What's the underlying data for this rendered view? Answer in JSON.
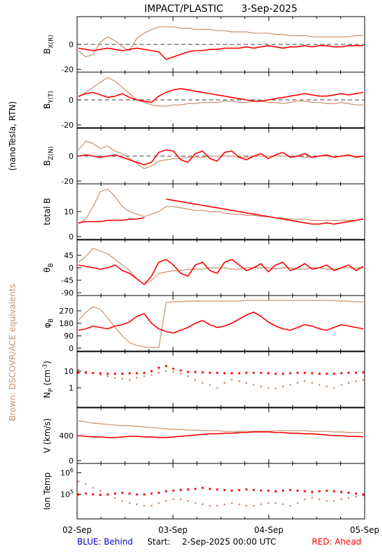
{
  "header": {
    "instrument": "IMPACT/PLASTIC",
    "date": "3-Sep-2025"
  },
  "left_labels": {
    "units": "(nanoTesla, RTN)",
    "brown_note": "Brown: DSCOVR/ACE equivalents"
  },
  "footer": {
    "blue_legend": "BLUE: Behind",
    "start_label": "Start:",
    "start_value": "2-Sep-2025 00:00 UTC",
    "red_legend": "RED: Ahead"
  },
  "x_axis": {
    "ticks": [
      "02-Sep",
      "03-Sep",
      "04-Sep",
      "05-Sep"
    ]
  },
  "colors": {
    "ahead": "#ff0000",
    "dscovr": "#c8906e",
    "behind": "#0000cc",
    "axis": "#000000"
  },
  "chart_data": [
    {
      "type": "line",
      "ylabel": "B_X(R)",
      "ylim": [
        -20,
        20
      ],
      "ticks": [
        "0",
        "-20"
      ],
      "zero_line": true,
      "series": [
        {
          "name": "RED: Ahead",
          "values": [
            -3,
            -4,
            -5,
            -4,
            -3,
            -4,
            -5,
            -4,
            -3,
            -4,
            -5,
            -6,
            -12,
            -10,
            -8,
            -6,
            -5,
            -5,
            -4,
            -4,
            -3,
            -3,
            -3,
            -2,
            -3,
            -2,
            -1,
            -2,
            -3,
            -2,
            -2,
            -1,
            -2,
            -1,
            -1,
            -2,
            -2,
            -1,
            -1,
            -1
          ]
        },
        {
          "name": "Brown: DSCOVR/ACE equivalents",
          "values": [
            -5,
            -10,
            -8,
            2,
            6,
            3,
            -2,
            -5,
            5,
            9,
            12,
            14,
            14,
            14,
            13,
            13,
            12,
            12,
            12,
            11,
            11,
            10,
            10,
            10,
            9,
            9,
            9,
            8,
            8,
            7,
            7,
            7,
            6,
            6,
            6,
            6,
            6,
            6,
            7,
            7
          ]
        }
      ]
    },
    {
      "type": "line",
      "ylabel": "B_Y(T)",
      "ylim": [
        -20,
        20
      ],
      "ticks": [
        "0",
        "-20"
      ],
      "zero_line": true,
      "series": [
        {
          "name": "RED: Ahead",
          "values": [
            3,
            5,
            6,
            4,
            2,
            3,
            5,
            2,
            0,
            -1,
            -2,
            3,
            6,
            8,
            9,
            8,
            7,
            6,
            5,
            4,
            3,
            2,
            1,
            0,
            -1,
            -1,
            0,
            1,
            2,
            3,
            4,
            5,
            4,
            3,
            3,
            4,
            5,
            4,
            5,
            6
          ]
        },
        {
          "name": "Brown: DSCOVR/ACE equivalents",
          "values": [
            2,
            6,
            10,
            14,
            18,
            15,
            10,
            5,
            0,
            -2,
            -4,
            -5,
            -5,
            -4,
            -4,
            -3,
            -3,
            -2,
            -2,
            -2,
            -1,
            -1,
            -2,
            -2,
            -1,
            -1,
            -2,
            -2,
            -3,
            -2,
            -1,
            -1,
            -2,
            -2,
            -3,
            -3,
            -2,
            -3,
            -4,
            -4
          ]
        }
      ]
    },
    {
      "type": "line",
      "ylabel": "B_Z(N)",
      "ylim": [
        -20,
        20
      ],
      "ticks": [
        "0",
        "-20"
      ],
      "zero_line": true,
      "series": [
        {
          "name": "RED: Ahead",
          "values": [
            0,
            1,
            0,
            -1,
            0,
            1,
            -1,
            -3,
            -5,
            -7,
            -5,
            3,
            5,
            4,
            -3,
            -5,
            2,
            4,
            -2,
            -4,
            3,
            4,
            -1,
            -3,
            0,
            2,
            -2,
            1,
            3,
            -1,
            0,
            2,
            -1,
            0,
            1,
            -1,
            0,
            1,
            -1,
            0
          ]
        },
        {
          "name": "Brown: DSCOVR/ACE equivalents",
          "values": [
            5,
            12,
            10,
            6,
            8,
            4,
            2,
            -2,
            -6,
            -10,
            -8,
            -4,
            -3,
            -2,
            -2,
            -1,
            -1,
            -1,
            0,
            0,
            0,
            0,
            -1,
            -1,
            0,
            0,
            0,
            0,
            0,
            0,
            0,
            -1,
            -1,
            0,
            0,
            -1,
            0,
            0,
            0,
            0
          ]
        }
      ]
    },
    {
      "type": "line",
      "ylabel": "total B",
      "ylim": [
        0,
        20
      ],
      "ticks": [
        "10",
        "0"
      ],
      "zero_line": false,
      "series": [
        {
          "name": "RED: Ahead",
          "values": [
            5.5,
            6,
            6,
            6,
            6.5,
            6.5,
            6.5,
            7,
            7,
            7.5,
            null,
            null,
            15,
            14.5,
            14,
            13.5,
            13,
            12.5,
            12,
            11.5,
            11,
            10.5,
            10,
            9.5,
            9,
            8.5,
            8,
            7.5,
            7,
            6.5,
            6,
            5.5,
            5,
            5,
            5.5,
            5,
            5.5,
            6,
            6.5,
            7
          ]
        },
        {
          "name": "Brown: DSCOVR/ACE equivalents",
          "values": [
            5,
            7,
            12,
            18,
            19,
            16,
            12,
            10,
            9,
            8,
            9,
            10,
            12,
            12,
            11.5,
            11,
            10.5,
            10.5,
            10,
            10,
            9.5,
            9,
            9,
            8.5,
            8.5,
            8,
            8,
            7.5,
            7.5,
            7,
            7,
            7,
            6.5,
            6.5,
            6.5,
            6.5,
            6.5,
            6.5,
            6.5,
            7
          ]
        }
      ]
    },
    {
      "type": "line",
      "ylabel": "θ_B",
      "ylim": [
        -90,
        90
      ],
      "ticks": [
        "45",
        "0",
        "-45",
        "-90"
      ],
      "zero_line": false,
      "series": [
        {
          "name": "RED: Ahead",
          "values": [
            10,
            5,
            0,
            -5,
            0,
            10,
            -10,
            -20,
            -40,
            -60,
            -30,
            20,
            30,
            10,
            -20,
            -30,
            10,
            20,
            -10,
            -20,
            20,
            30,
            10,
            -10,
            0,
            15,
            -15,
            10,
            20,
            -10,
            0,
            15,
            -5,
            0,
            10,
            -10,
            0,
            10,
            -10,
            5
          ]
        },
        {
          "name": "Brown: DSCOVR/ACE equivalents",
          "values": [
            20,
            40,
            70,
            60,
            50,
            30,
            10,
            -10,
            -40,
            -60,
            -45,
            -20,
            -15,
            -10,
            -10,
            -5,
            -5,
            -5,
            0,
            0,
            0,
            -5,
            -5,
            0,
            0,
            0,
            0,
            -5,
            0,
            0,
            -5,
            -5,
            0,
            0,
            -5,
            -5,
            0,
            0,
            0,
            0
          ]
        }
      ]
    },
    {
      "type": "line",
      "ylabel": "φ_B",
      "ylim": [
        0,
        360
      ],
      "ticks": [
        "270",
        "180",
        "90",
        "0"
      ],
      "zero_line": false,
      "series": [
        {
          "name": "RED: Ahead",
          "values": [
            130,
            140,
            160,
            150,
            140,
            160,
            170,
            190,
            230,
            250,
            180,
            140,
            120,
            110,
            130,
            150,
            180,
            200,
            170,
            150,
            160,
            180,
            210,
            240,
            260,
            230,
            190,
            160,
            140,
            130,
            150,
            170,
            160,
            140,
            130,
            150,
            170,
            160,
            150,
            140
          ]
        },
        {
          "name": "Brown: DSCOVR/ACE equivalents",
          "values": [
            200,
            260,
            300,
            280,
            220,
            150,
            90,
            40,
            20,
            10,
            5,
            5,
            330,
            335,
            335,
            340,
            340,
            340,
            340,
            340,
            340,
            340,
            340,
            345,
            345,
            345,
            345,
            345,
            345,
            345,
            345,
            345,
            345,
            345,
            345,
            345,
            340,
            340,
            335,
            335
          ]
        }
      ]
    },
    {
      "type": "scatter",
      "ylabel": "N_P (cm^-3)",
      "yscale": "log",
      "ylim": [
        0.1,
        100
      ],
      "ticks": [
        "10",
        "1"
      ],
      "zero_line": false,
      "series": [
        {
          "name": "RED: Ahead",
          "values": [
            8,
            8,
            7.5,
            7.5,
            7,
            7,
            7,
            7.5,
            7.5,
            8,
            10,
            16,
            20,
            14,
            11,
            9,
            9,
            8.5,
            8,
            8,
            7.5,
            7.5,
            7.5,
            8,
            8,
            8,
            7.5,
            7,
            7,
            7.5,
            8,
            8,
            7.5,
            7,
            7,
            7,
            7.5,
            8,
            8,
            8.5
          ]
        },
        {
          "name": "Brown: DSCOVR/ACE equivalents",
          "values": [
            12,
            10,
            8,
            6,
            5,
            4,
            3.5,
            3,
            4,
            5,
            6,
            8,
            10,
            9,
            7,
            5,
            3,
            2,
            1.5,
            1,
            2,
            3,
            2.5,
            2,
            1.5,
            1.2,
            1,
            0.9,
            1.2,
            1.5,
            2,
            2.5,
            2,
            1.5,
            1.2,
            1,
            1.5,
            2,
            2.5,
            3
          ]
        }
      ]
    },
    {
      "type": "line",
      "ylabel": "V (km/s)",
      "ylim": [
        0,
        800
      ],
      "ticks": [
        "400",
        "0"
      ],
      "zero_line": false,
      "series": [
        {
          "name": "RED: Ahead",
          "values": [
            400,
            390,
            380,
            380,
            370,
            370,
            380,
            390,
            390,
            380,
            380,
            370,
            370,
            380,
            390,
            400,
            410,
            420,
            430,
            430,
            440,
            440,
            450,
            450,
            460,
            460,
            460,
            450,
            450,
            440,
            440,
            430,
            430,
            420,
            410,
            400,
            400,
            390,
            390,
            380
          ]
        },
        {
          "name": "Brown: DSCOVR/ACE equivalents",
          "values": [
            640,
            620,
            600,
            590,
            580,
            570,
            560,
            560,
            550,
            540,
            530,
            520,
            510,
            500,
            500,
            490,
            490,
            480,
            480,
            480,
            470,
            470,
            470,
            470,
            470,
            470,
            470,
            480,
            480,
            480,
            480,
            480,
            470,
            470,
            470,
            460,
            460,
            450,
            450,
            450
          ]
        }
      ]
    },
    {
      "type": "scatter",
      "ylabel": "Ion Temp",
      "yscale": "log",
      "ylim": [
        10000,
        2000000
      ],
      "ticks": [
        "10^6",
        "10^5"
      ],
      "zero_line": false,
      "series": [
        {
          "name": "RED: Ahead",
          "values": [
            100000,
            110000,
            100000,
            95000,
            100000,
            110000,
            120000,
            110000,
            100000,
            100000,
            110000,
            120000,
            140000,
            150000,
            160000,
            170000,
            180000,
            200000,
            180000,
            170000,
            160000,
            150000,
            160000,
            170000,
            160000,
            150000,
            150000,
            140000,
            150000,
            160000,
            150000,
            140000,
            130000,
            140000,
            150000,
            140000,
            130000,
            120000,
            110000,
            100000
          ]
        },
        {
          "name": "Brown: DSCOVR/ACE equivalents",
          "values": [
            400000,
            300000,
            200000,
            150000,
            100000,
            70000,
            50000,
            40000,
            35000,
            30000,
            30000,
            40000,
            50000,
            60000,
            60000,
            50000,
            40000,
            35000,
            30000,
            30000,
            35000,
            40000,
            35000,
            30000,
            30000,
            35000,
            40000,
            40000,
            35000,
            30000,
            40000,
            60000,
            70000,
            60000,
            50000,
            50000,
            60000,
            70000,
            80000,
            90000
          ]
        }
      ]
    }
  ]
}
